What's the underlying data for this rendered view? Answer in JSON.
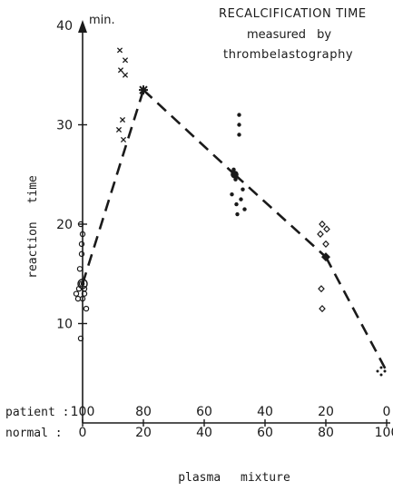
{
  "chart_data": {
    "type": "scatter",
    "title": "RECALCIFICATION TIME",
    "subtitle_line1": "measured by",
    "subtitle_line2": "thrombelastography",
    "ylabel": "reaction time",
    "yunit": "min.",
    "xlabel": "plasma mixture",
    "ylim": [
      0,
      40
    ],
    "y_ticks": [
      "10",
      "20",
      "30",
      "40"
    ],
    "y_tick_values": [
      10,
      20,
      30,
      40
    ],
    "x_row_labels": [
      "patient :",
      "normal :"
    ],
    "x_patient_ticks": [
      "100",
      "80",
      "60",
      "40",
      "20",
      "0"
    ],
    "x_normal_ticks": [
      "0",
      "20",
      "40",
      "60",
      "80",
      "100"
    ],
    "x_tick_values": [
      100,
      80,
      60,
      40,
      20,
      0
    ],
    "series": [
      {
        "marker": "circle",
        "x": 100,
        "values": [
          8.5,
          11.5,
          12.5,
          12.5,
          13,
          13,
          13.5,
          13.5,
          14,
          15.5,
          17,
          18,
          19,
          20
        ]
      },
      {
        "marker": "x",
        "x": 80,
        "values": [
          37.5,
          36.5,
          35.5,
          35,
          30.5,
          29.5,
          28.5
        ]
      },
      {
        "marker": "dot",
        "x": 50,
        "values": [
          31,
          30,
          29,
          25.5,
          24.5,
          23.5,
          23,
          22.5,
          22,
          21.5,
          21
        ]
      },
      {
        "marker": "diamond",
        "x": 20,
        "values": [
          20,
          19.5,
          19,
          18,
          13.5,
          11.5
        ]
      },
      {
        "marker": "cross",
        "x": 0,
        "values": [
          5.2
        ]
      }
    ],
    "mean_line": {
      "x": [
        100,
        80,
        50,
        20,
        0
      ],
      "y": [
        14,
        33.5,
        25,
        16.7,
        5.2
      ]
    },
    "mean_markers": [
      {
        "x": 100,
        "y": 14
      },
      {
        "x": 80,
        "y": 33.5
      },
      {
        "x": 50,
        "y": 25
      },
      {
        "x": 20,
        "y": 16.7
      }
    ]
  }
}
